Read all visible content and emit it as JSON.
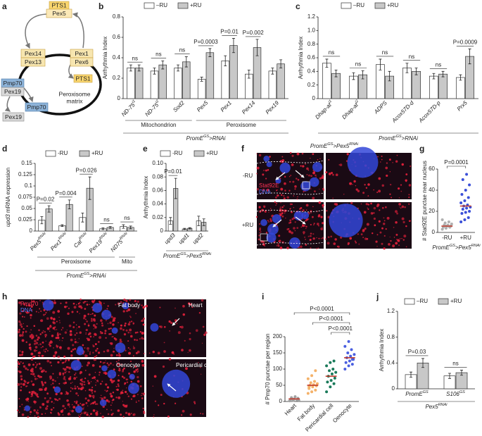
{
  "panel_labels": [
    "a",
    "b",
    "c",
    "d",
    "e",
    "f",
    "g",
    "h",
    "i",
    "j"
  ],
  "diagram": {
    "pts1_top": "PTS1",
    "pex5": "Pex5",
    "pex14": "Pex14",
    "pex13": "Pex13",
    "pex1": "Pex1",
    "pex6": "Pex6",
    "pts1_inner": "PTS1",
    "pmp70_left": "Pmp70",
    "pex19_left": "Pex19",
    "pmp70_right": "Pmp70",
    "pex19_bottom": "Pex19",
    "matrix": [
      "Peroxisome",
      "matrix"
    ]
  },
  "images": {
    "f": {
      "genotype": [
        "PromE",
        "GS",
        ">Pex5",
        "RNAi"
      ],
      "rows": [
        "-RU",
        "+RU"
      ],
      "stain": "Stat92E",
      "dna": "DNA"
    },
    "h": {
      "stain": "Pmp70",
      "dna": "DNA",
      "tissues": [
        "Fat body",
        "Heart",
        "Oenocyte",
        "Pericardial cell"
      ]
    }
  },
  "chart_data": [
    {
      "type": "bar",
      "ylabel": "Arrhythmia Index",
      "categories": [
        "ND-75",
        "ND-75",
        "Sod2",
        "Pex5",
        "Pex1",
        "Pex14",
        "Pex19"
      ],
      "category_sups": [
        "i1",
        "i2",
        null,
        null,
        null,
        null,
        null
      ],
      "series": [
        {
          "name": "–RU",
          "color": "#ffffff",
          "values": [
            0.3,
            0.27,
            0.3,
            0.19,
            0.37,
            0.24,
            0.27
          ],
          "errors": [
            0.03,
            0.03,
            0.03,
            0.02,
            0.05,
            0.04,
            0.03
          ]
        },
        {
          "name": "+RU",
          "color": "#c8c8c8",
          "values": [
            0.3,
            0.33,
            0.36,
            0.45,
            0.52,
            0.5,
            0.34
          ],
          "errors": [
            0.03,
            0.04,
            0.05,
            0.04,
            0.07,
            0.08,
            0.04
          ]
        }
      ],
      "ylim": [
        0,
        0.8
      ],
      "yticks": [
        0,
        0.2,
        0.4,
        0.6,
        0.8
      ],
      "annotations": [
        "ns",
        "ns",
        "ns",
        "P=0.0003",
        "P=0.01",
        "P=0.002",
        null
      ],
      "groups": [
        "Mitochondrion",
        "Peroxisome"
      ],
      "xlabel": [
        "PromE",
        "GS",
        ">RNAi"
      ]
    },
    {
      "type": "bar",
      "ylabel": "Arrhythmia Index",
      "categories": [
        "Dhap-at",
        "Dhap-at",
        "ADPS",
        "Acox57D-d",
        "Acox57D-p",
        "Prx5"
      ],
      "category_sups": [
        "i1",
        "i2",
        null,
        null,
        null,
        null
      ],
      "series": [
        {
          "name": "–RU",
          "color": "#ffffff",
          "values": [
            0.52,
            0.33,
            0.5,
            0.45,
            0.33,
            0.31
          ],
          "errors": [
            0.06,
            0.05,
            0.08,
            0.07,
            0.04,
            0.04
          ]
        },
        {
          "name": "+RU",
          "color": "#c8c8c8",
          "values": [
            0.37,
            0.35,
            0.33,
            0.4,
            0.36,
            0.62
          ],
          "errors": [
            0.05,
            0.06,
            0.07,
            0.05,
            0.04,
            0.11
          ]
        }
      ],
      "ylim": [
        0,
        1.2
      ],
      "yticks": [
        0,
        0.2,
        0.4,
        0.6,
        0.8,
        {
          "value": 1,
          "label": "1.0"
        },
        1.2
      ],
      "annotations": [
        "ns",
        "ns",
        "ns",
        "ns",
        "ns",
        "P=0.0009"
      ],
      "xlabel": [
        "PromE",
        "GS",
        ">RNAi"
      ]
    },
    {
      "type": "bar",
      "ylabel_gene": "upd3",
      "ylabel": " mRNA expression",
      "categories": [
        "Pex5",
        "Pex1",
        "Cat",
        "Pex19",
        "ND75"
      ],
      "category_sups": [
        "RNAi",
        "RNAi",
        "RNAi",
        "RNAi",
        "RNAi"
      ],
      "series": [
        {
          "name": "-RU",
          "color": "#ffffff",
          "values": [
            0.024,
            0.012,
            0.03,
            0.005,
            0.01
          ],
          "errors": [
            0.008,
            0.002,
            0.01,
            0.002,
            0.004
          ]
        },
        {
          "name": "+RU",
          "color": "#c8c8c8",
          "values": [
            0.049,
            0.059,
            0.095,
            0.008,
            0.008
          ],
          "errors": [
            0.007,
            0.01,
            0.025,
            0.002,
            0.003
          ]
        }
      ],
      "ylim": [
        0,
        0.15
      ],
      "yticks": [
        0,
        0.025,
        0.05,
        0.075,
        0.1,
        0.125,
        0.15
      ],
      "annotations": [
        "P=0.02",
        "P=0.004",
        "P=0.026",
        "ns",
        "ns"
      ],
      "groups": [
        "Peroxisome",
        "Mito"
      ],
      "xlabel": [
        "PromE",
        "GS",
        ">RNAi"
      ]
    },
    {
      "type": "bar",
      "ylabel": "Arrhythmia Index",
      "categories": [
        "upd3",
        "upd1",
        "upd2"
      ],
      "category_sups": [
        null,
        null,
        null
      ],
      "series": [
        {
          "name": "-RU",
          "color": "#ffffff",
          "values": [
            0.015,
            0.003,
            0.015
          ],
          "errors": [
            0.005,
            0.001,
            0.007
          ]
        },
        {
          "name": "+RU",
          "color": "#c8c8c8",
          "values": [
            0.063,
            0.004,
            0.013
          ],
          "errors": [
            0.015,
            0.001,
            0.005
          ]
        }
      ],
      "ylim": [
        0,
        0.1
      ],
      "yticks": [
        0,
        0.02,
        0.04,
        0.06,
        0.08,
        {
          "value": 0.1,
          "label": "0.10"
        }
      ],
      "annotations": [
        "P=0.01",
        null,
        null
      ],
      "xlabel": [
        "PromE",
        "GS",
        ">Pex5",
        "RNAi"
      ]
    },
    {
      "type": "strip",
      "ylabel": "# Stat92E punctae near nucleus",
      "categories": [
        "-RU",
        "+RU"
      ],
      "colors": [
        "#b0b0b0",
        "#3a4fd8"
      ],
      "points": [
        [
          3,
          4,
          5,
          5,
          6,
          6,
          7,
          7,
          8,
          9,
          10,
          12,
          6,
          5
        ],
        [
          10,
          12,
          14,
          18,
          19,
          20,
          22,
          23,
          24,
          25,
          26,
          28,
          30,
          33,
          36,
          40,
          45,
          50,
          55
        ]
      ],
      "values": [
        6,
        25
      ],
      "mean_color": "#c0392b",
      "ylim": [
        0,
        60
      ],
      "yticks": [
        0,
        20,
        40,
        60
      ],
      "comparisons": [
        "P=0.0001"
      ],
      "xlabel": [
        "PromE",
        "GS",
        ">Pex5",
        "RNAi"
      ]
    },
    {
      "type": "strip",
      "ylabel": "# Pmp70 punctae per region",
      "categories": [
        "Heart",
        "Fat body",
        "Pericardial cell",
        "Oenocyte"
      ],
      "colors": [
        "#a0a0a0",
        "#f4b26a",
        "#1a7a5a",
        "#4a5fe0"
      ],
      "points": [
        [
          2,
          3,
          5,
          6,
          8,
          10,
          12,
          15,
          4,
          7
        ],
        [
          25,
          30,
          35,
          40,
          45,
          48,
          50,
          52,
          55,
          58,
          62,
          70,
          80,
          95,
          45
        ],
        [
          30,
          45,
          55,
          60,
          65,
          72,
          78,
          85,
          90,
          95,
          100,
          110,
          120,
          125
        ],
        [
          100,
          110,
          115,
          120,
          125,
          130,
          135,
          140,
          145,
          150,
          160,
          170,
          185,
          130
        ]
      ],
      "values": [
        8,
        50,
        78,
        135
      ],
      "mean_color": "#c0392b",
      "ylim": [
        0,
        200
      ],
      "yticks": [
        0,
        50,
        100,
        150,
        200
      ],
      "comparisons": [
        "P<0.0001",
        "P<0.0001",
        "P<0.0001"
      ]
    },
    {
      "type": "bar",
      "ylabel": "Arrhythmia Index",
      "categories": [
        "PromE",
        "S106"
      ],
      "category_sups": [
        "GS",
        "GS"
      ],
      "series": [
        {
          "name": "–RU",
          "color": "#ffffff",
          "values": [
            0.22,
            0.2
          ],
          "errors": [
            0.04,
            0.04
          ]
        },
        {
          "name": "+RU",
          "color": "#c8c8c8",
          "values": [
            0.4,
            0.25
          ],
          "errors": [
            0.07,
            0.04
          ]
        }
      ],
      "ylim": [
        0,
        1.2
      ],
      "yticks": [
        0,
        0.4,
        0.8,
        1.2
      ],
      "annotations": [
        "P=0.03",
        "ns"
      ],
      "xlabel": [
        "Pex5",
        "RNAi"
      ]
    }
  ]
}
